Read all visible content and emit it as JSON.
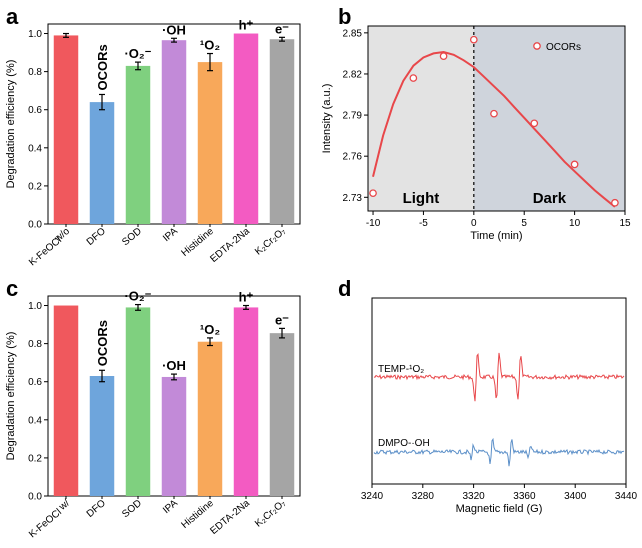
{
  "panels": {
    "a": "a",
    "b": "b",
    "c": "c",
    "d": "d"
  },
  "chart_data": [
    {
      "panel": "a",
      "type": "bar",
      "ylabel": "Degradation efficiency (%)",
      "ylim": [
        0,
        1.05
      ],
      "yticks": [
        "0.0",
        "0.2",
        "0.4",
        "0.6",
        "0.8",
        "1.0"
      ],
      "categories": [
        "w/o K-FeOCl",
        "DFO",
        "SOD",
        "IPA",
        "Histidine",
        "EDTA-2Na",
        "K2Cr2O7"
      ],
      "category_labels": [
        {
          "line1": "w/o",
          "line2": "K-FeOCl"
        },
        {
          "line1": "DFO",
          "line2": ""
        },
        {
          "line1": "SOD",
          "line2": ""
        },
        {
          "line1": "IPA",
          "line2": ""
        },
        {
          "line1": "Histidine",
          "line2": ""
        },
        {
          "line1": "EDTA-2Na",
          "line2": ""
        },
        {
          "line1": "K₂Cr₂O₇",
          "line2": ""
        }
      ],
      "values": [
        0.99,
        0.64,
        0.83,
        0.965,
        0.85,
        1.0,
        0.97
      ],
      "errors": [
        0.01,
        0.04,
        0.02,
        0.01,
        0.045,
        0.0,
        0.01
      ],
      "colors": [
        "#f0585d",
        "#6ea5dc",
        "#7fd07f",
        "#c28ad8",
        "#f8a85a",
        "#f35bc2",
        "#a5a5a5"
      ],
      "annotations": [
        "",
        "OCORs",
        "·O₂⁻",
        "·OH",
        "¹O₂",
        "h⁺",
        "e⁻"
      ]
    },
    {
      "panel": "b",
      "type": "scatter",
      "xlabel": "Time (min)",
      "ylabel": "Intensity (a.u.)",
      "xlim": [
        -10.5,
        15
      ],
      "ylim": [
        2.72,
        2.855
      ],
      "xticks": [
        -10,
        -5,
        0,
        5,
        10,
        15
      ],
      "yticks": [
        "2.73",
        "2.76",
        "2.79",
        "2.82",
        "2.85"
      ],
      "series": [
        {
          "name": "OCORs",
          "x": [
            -10,
            -6,
            -3,
            0,
            2,
            6,
            10,
            14
          ],
          "y": [
            2.733,
            2.817,
            2.833,
            2.845,
            2.791,
            2.784,
            2.754,
            2.726
          ],
          "color": "#e8474a"
        }
      ],
      "fit_curve": {
        "x": [
          -10,
          -9,
          -8,
          -7,
          -6,
          -5,
          -4,
          -3,
          -2,
          -1,
          0,
          1,
          2,
          3,
          4,
          5,
          6,
          7,
          8,
          9,
          10,
          11,
          12,
          13,
          14
        ],
        "y": [
          2.745,
          2.775,
          2.798,
          2.815,
          2.826,
          2.832,
          2.835,
          2.836,
          2.834,
          2.83,
          2.825,
          2.818,
          2.811,
          2.804,
          2.796,
          2.788,
          2.78,
          2.772,
          2.764,
          2.756,
          2.749,
          2.742,
          2.735,
          2.729,
          2.723
        ]
      },
      "regions": [
        {
          "label": "Light",
          "from": -10.5,
          "to": 0,
          "color": "#e3e3e3"
        },
        {
          "label": "Dark",
          "from": 0,
          "to": 15,
          "color": "#cfd4dc"
        }
      ]
    },
    {
      "panel": "c",
      "type": "bar",
      "ylabel": "Degradation efficiency (%)",
      "ylim": [
        0,
        1.05
      ],
      "yticks": [
        "0.0",
        "0.2",
        "0.4",
        "0.6",
        "0.8",
        "1.0"
      ],
      "categories": [
        "w/ K-FeOCl",
        "DFO",
        "SOD",
        "IPA",
        "Histidine",
        "EDTA-2Na",
        "K2Cr2O7"
      ],
      "category_labels": [
        {
          "line1": "w/",
          "line2": "K-FeOCl"
        },
        {
          "line1": "DFO",
          "line2": ""
        },
        {
          "line1": "SOD",
          "line2": ""
        },
        {
          "line1": "IPA",
          "line2": ""
        },
        {
          "line1": "Histidine",
          "line2": ""
        },
        {
          "line1": "EDTA-2Na",
          "line2": ""
        },
        {
          "line1": "K₂Cr₂O₇",
          "line2": ""
        }
      ],
      "values": [
        1.0,
        0.63,
        0.99,
        0.625,
        0.81,
        0.99,
        0.855
      ],
      "errors": [
        0.0,
        0.03,
        0.015,
        0.015,
        0.02,
        0.01,
        0.025
      ],
      "colors": [
        "#f0585d",
        "#6ea5dc",
        "#7fd07f",
        "#c28ad8",
        "#f8a85a",
        "#f35bc2",
        "#a5a5a5"
      ],
      "annotations": [
        "",
        "OCORs",
        "·O₂⁻",
        "·OH",
        "¹O₂",
        "h⁺",
        "e⁻"
      ]
    },
    {
      "panel": "d",
      "type": "line",
      "xlabel": "Magnetic field (G)",
      "xlim": [
        3240,
        3440
      ],
      "xticks": [
        3240,
        3280,
        3320,
        3360,
        3400,
        3440
      ],
      "series": [
        {
          "name": "TEMP-¹O₂",
          "color": "#e8474a"
        },
        {
          "name": "DMPO-·OH",
          "color": "#5b8fc8"
        }
      ]
    }
  ]
}
